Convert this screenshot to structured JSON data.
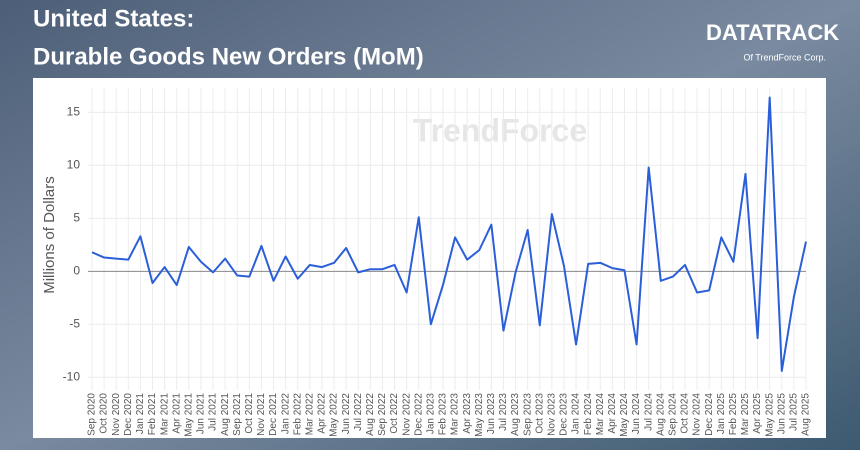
{
  "chart_data": {
    "type": "line",
    "title": "United States:",
    "subtitle": "Durable Goods New Orders (MoM)",
    "y_label": "Millions of Dollars",
    "categories": [
      "Sep 2020",
      "Oct 2020",
      "Nov 2020",
      "Dec 2020",
      "Jan 2021",
      "Feb 2021",
      "Mar 2021",
      "Apr 2021",
      "May 2021",
      "Jun 2021",
      "Jul 2021",
      "Aug 2021",
      "Sep 2021",
      "Oct 2021",
      "Nov 2021",
      "Dec 2021",
      "Jan 2022",
      "Feb 2022",
      "Mar 2022",
      "Apr 2022",
      "May 2022",
      "Jun 2022",
      "Jul 2022",
      "Aug 2022",
      "Sep 2022",
      "Oct 2022",
      "Nov 2022",
      "Dec 2022",
      "Jan 2023",
      "Feb 2023",
      "Mar 2023",
      "Apr 2023",
      "May 2023",
      "Jun 2023",
      "Jul 2023",
      "Aug 2023",
      "Sep 2023",
      "Oct 2023",
      "Nov 2023",
      "Dec 2023",
      "Jan 2024",
      "Feb 2024",
      "Mar 2024",
      "Apr 2024",
      "May 2024",
      "Jun 2024",
      "Jul 2024",
      "Aug 2024",
      "Sep 2024",
      "Oct 2024",
      "Nov 2024",
      "Dec 2024",
      "Jan 2025",
      "Feb 2025",
      "Mar 2025",
      "Apr 2025",
      "May 2025",
      "Jun 2025",
      "Jul 2025",
      "Aug 2025"
    ],
    "series": [
      {
        "name": "Durable Goods New Orders (MoM)",
        "color": "#2b5fd9",
        "values": [
          1.8,
          1.3,
          1.2,
          1.1,
          3.3,
          -1.1,
          0.4,
          -1.3,
          2.3,
          0.9,
          -0.1,
          1.2,
          -0.4,
          -0.5,
          2.4,
          -0.9,
          1.4,
          -0.7,
          0.6,
          0.4,
          0.8,
          2.2,
          -0.1,
          0.2,
          0.2,
          0.6,
          -2.0,
          5.1,
          -5.0,
          -1.3,
          3.2,
          1.1,
          2.0,
          4.4,
          -5.6,
          -0.1,
          3.9,
          -5.1,
          5.4,
          0.5,
          -6.9,
          0.7,
          0.8,
          0.3,
          0.1,
          -6.9,
          9.8,
          -0.9,
          -0.5,
          0.6,
          -2.0,
          -1.8,
          3.2,
          0.9,
          9.2,
          -6.3,
          16.4,
          -9.4,
          -2.4,
          2.8
        ]
      }
    ],
    "ylim": [
      -11.2,
      17.3
    ],
    "yticks": [
      -10,
      -5,
      0,
      5,
      10,
      15
    ],
    "grid": true
  },
  "logo": {
    "name": "DATATRACK",
    "tagline": "Of TrendForce Corp."
  },
  "watermark": "TrendForce"
}
